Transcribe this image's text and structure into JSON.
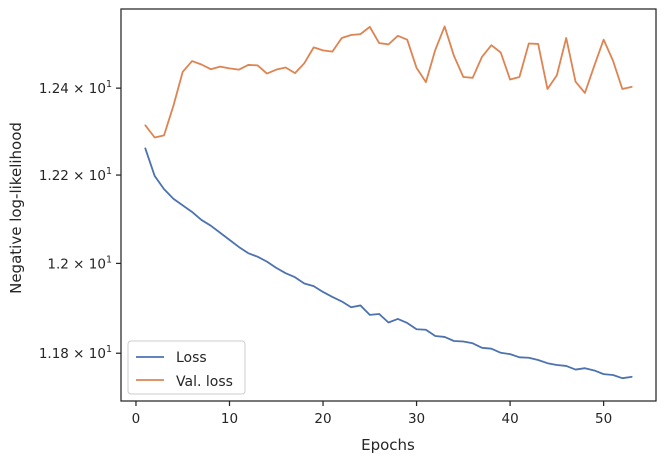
{
  "chart_data": {
    "type": "line",
    "xlabel": "Epochs",
    "ylabel": "Negative log-likelihood",
    "xlim": [
      -1.6,
      55.6
    ],
    "ylim": [
      11.695,
      12.585
    ],
    "y_scale": "log",
    "grid": false,
    "legend_position": "lower-left",
    "x_ticks": [
      0,
      10,
      20,
      30,
      40,
      50
    ],
    "y_ticks": [
      {
        "value": 11.8,
        "mantissa": "1.18",
        "exponent": "1"
      },
      {
        "value": 12.0,
        "mantissa": "1.2",
        "exponent": "1"
      },
      {
        "value": 12.2,
        "mantissa": "1.22",
        "exponent": "1"
      },
      {
        "value": 12.4,
        "mantissa": "1.24",
        "exponent": "1"
      }
    ],
    "tick_times": "×",
    "tick_base": "10",
    "x": [
      1,
      2,
      3,
      4,
      5,
      6,
      7,
      8,
      9,
      10,
      11,
      12,
      13,
      14,
      15,
      16,
      17,
      18,
      19,
      20,
      21,
      22,
      23,
      24,
      25,
      26,
      27,
      28,
      29,
      30,
      31,
      32,
      33,
      34,
      35,
      36,
      37,
      38,
      39,
      40,
      41,
      42,
      43,
      44,
      45,
      46,
      47,
      48,
      49,
      50,
      51,
      52,
      53
    ],
    "series": [
      {
        "name": "Loss",
        "color": "#4c72b0",
        "values": [
          12.261,
          12.198,
          12.168,
          12.146,
          12.131,
          12.116,
          12.098,
          12.085,
          12.069,
          12.053,
          12.037,
          12.023,
          12.015,
          12.004,
          11.99,
          11.978,
          11.969,
          11.955,
          11.949,
          11.936,
          11.925,
          11.915,
          11.902,
          11.906,
          11.885,
          11.887,
          11.868,
          11.876,
          11.867,
          11.853,
          11.852,
          11.838,
          11.836,
          11.827,
          11.826,
          11.822,
          11.812,
          11.81,
          11.801,
          11.798,
          11.791,
          11.79,
          11.785,
          11.778,
          11.774,
          11.772,
          11.764,
          11.767,
          11.762,
          11.754,
          11.752,
          11.745,
          11.748
        ]
      },
      {
        "name": "Val. loss",
        "color": "#dd8452",
        "values": [
          12.314,
          12.286,
          12.291,
          12.359,
          12.438,
          12.463,
          12.455,
          12.444,
          12.45,
          12.446,
          12.443,
          12.454,
          12.453,
          12.434,
          12.443,
          12.448,
          12.435,
          12.458,
          12.495,
          12.488,
          12.485,
          12.517,
          12.524,
          12.526,
          12.543,
          12.505,
          12.502,
          12.522,
          12.513,
          12.447,
          12.414,
          12.489,
          12.544,
          12.475,
          12.426,
          12.424,
          12.473,
          12.5,
          12.483,
          12.42,
          12.426,
          12.504,
          12.503,
          12.398,
          12.43,
          12.517,
          12.415,
          12.389,
          12.452,
          12.513,
          12.464,
          12.398,
          12.403
        ]
      }
    ]
  }
}
